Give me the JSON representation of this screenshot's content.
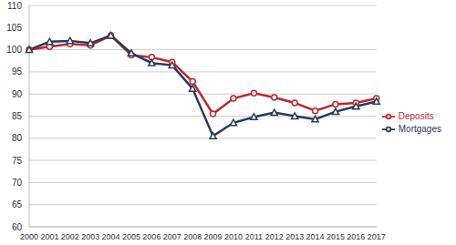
{
  "chart_data": {
    "type": "line",
    "categories": [
      "2000",
      "2001",
      "2002",
      "2003",
      "2004",
      "2005",
      "2006",
      "2007",
      "2008",
      "2009",
      "2010",
      "2011",
      "2012",
      "2013",
      "2014",
      "2015",
      "2016",
      "2017"
    ],
    "series": [
      {
        "name": "Deposits",
        "color": "#c0272d",
        "marker": "circle",
        "values": [
          100,
          100.7,
          101.3,
          101,
          103.2,
          98.8,
          98.3,
          97.2,
          92.8,
          85.5,
          89,
          90.2,
          89.2,
          88,
          86.2,
          87.7,
          88,
          89
        ]
      },
      {
        "name": "Mortgages",
        "color": "#2b3a5c",
        "marker": "triangle",
        "values": [
          100,
          101.8,
          102,
          101.5,
          103.2,
          99.2,
          97,
          96.5,
          91.2,
          80.5,
          83.5,
          84.8,
          85.8,
          85,
          84.3,
          86,
          87.2,
          88.3
        ]
      }
    ],
    "ylim": [
      60,
      110
    ],
    "yticks": [
      60,
      65,
      70,
      75,
      80,
      85,
      90,
      95,
      100,
      105,
      110
    ],
    "grid": true,
    "legend": "right"
  }
}
